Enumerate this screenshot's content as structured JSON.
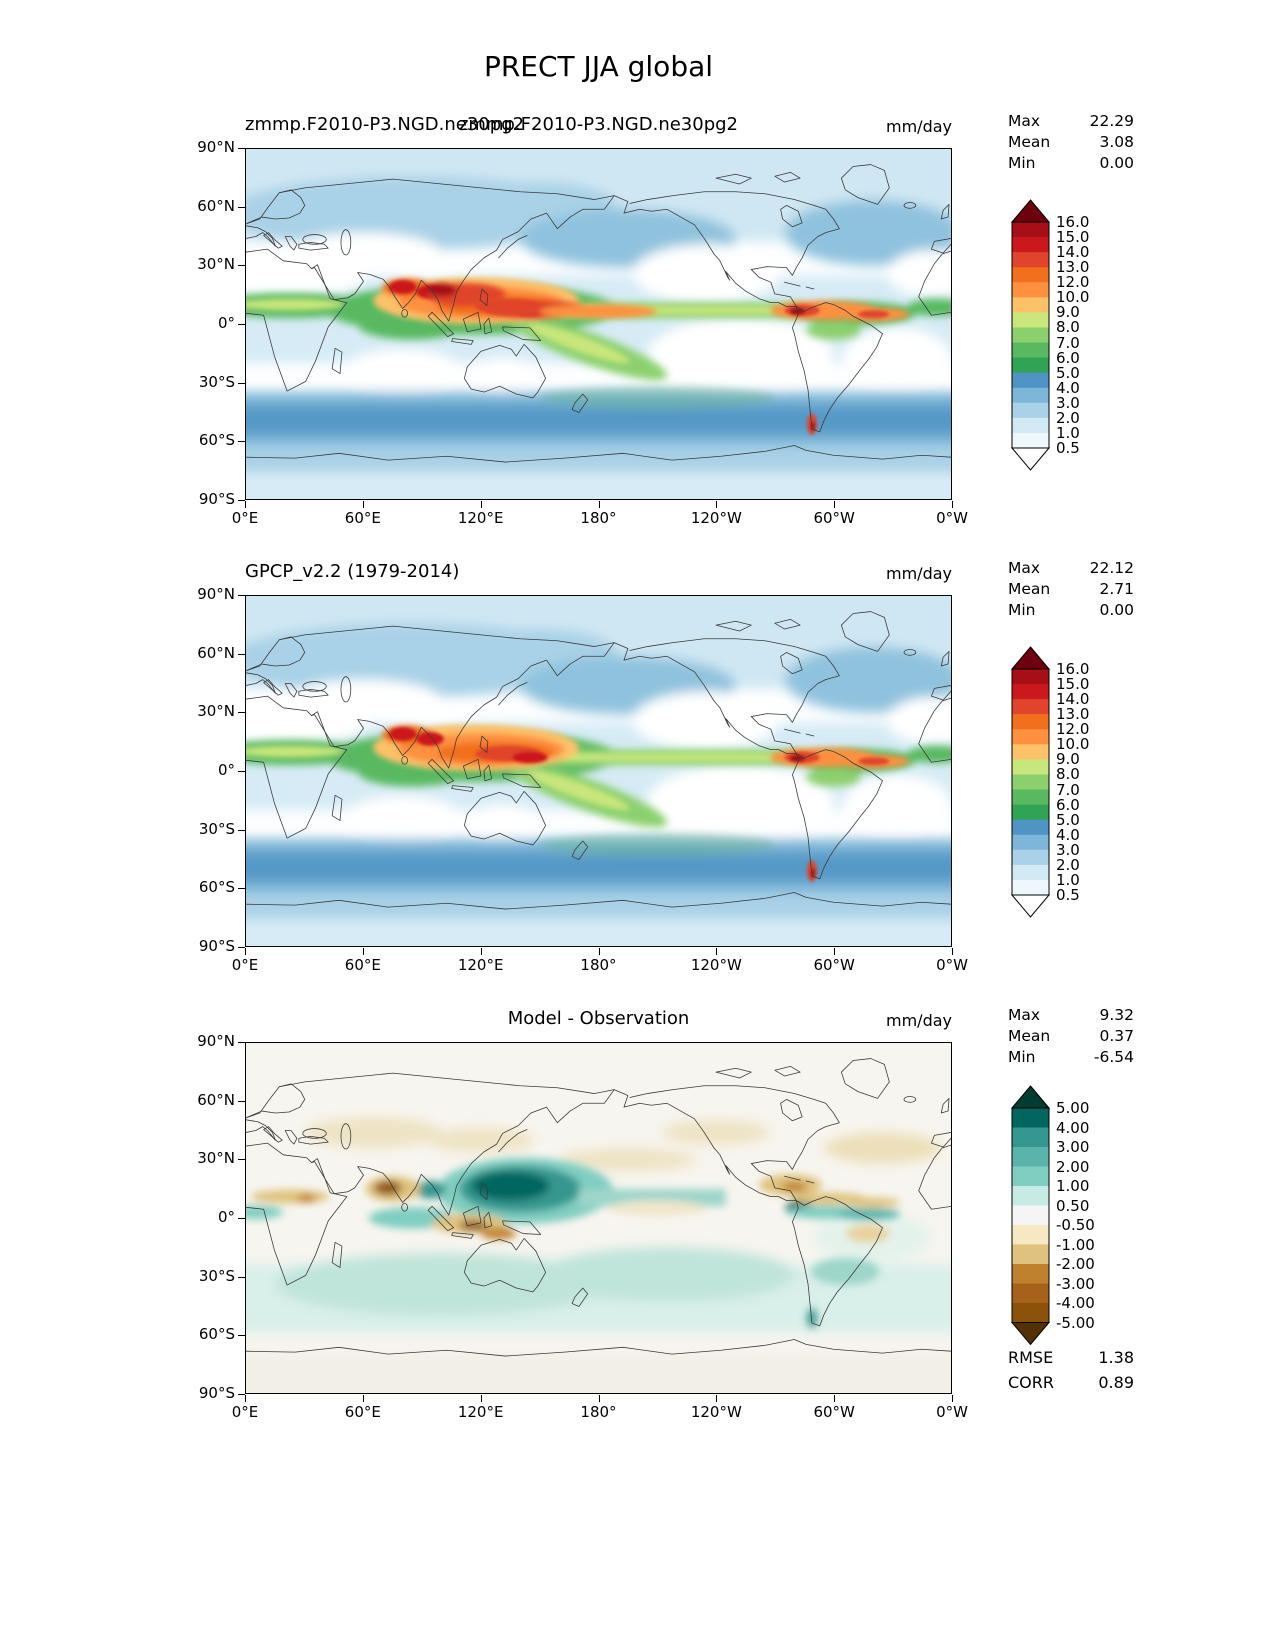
{
  "figure": {
    "title": "PRECT JJA global"
  },
  "chart_data": {
    "type": "heatmap",
    "title": "PRECT JJA global",
    "variable": "PRECT",
    "season": "JJA",
    "region": "global",
    "projection": "equirectangular lat-lon",
    "x_axis": {
      "tick_labels": [
        "0°E",
        "60°E",
        "120°E",
        "180°",
        "120°W",
        "60°W",
        "0°W"
      ],
      "range_lon_deg": [
        0,
        360
      ]
    },
    "y_axis": {
      "tick_labels": [
        "90°N",
        "60°N",
        "30°N",
        "0°",
        "30°S",
        "60°S",
        "90°S"
      ],
      "range_lat_deg": [
        90,
        -90
      ]
    },
    "panels": [
      {
        "name": "model",
        "title_left": "zmmp.F2010-P3.NGD.ne30pg2",
        "title_center": "zmmp.F2010-P3.NGD.ne30pg2",
        "units": "mm/day",
        "stats": [
          [
            "Max",
            "22.29"
          ],
          [
            "Mean",
            "3.08"
          ],
          [
            "Min",
            "0.00"
          ]
        ],
        "stats_numeric": {
          "max": 22.29,
          "mean": 3.08,
          "min": 0.0
        },
        "colorbar": {
          "levels": [
            0.5,
            1.0,
            2.0,
            3.0,
            4.0,
            5.0,
            6.0,
            7.0,
            8.0,
            9.0,
            10.0,
            12.0,
            13.0,
            14.0,
            15.0,
            16.0
          ],
          "tick_labels": [
            "16.0",
            "15.0",
            "14.0",
            "13.0",
            "12.0",
            "10.0",
            "9.0",
            "8.0",
            "7.0",
            "6.0",
            "5.0",
            "4.0",
            "3.0",
            "2.0",
            "1.0",
            "0.5"
          ],
          "band_colors_top_to_bottom": [
            "#a50f15",
            "#cb181d",
            "#e0442c",
            "#f2701d",
            "#fd9140",
            "#fdc169",
            "#c9e67d",
            "#8cd06e",
            "#59b961",
            "#31a354",
            "#4f94c4",
            "#7db6d8",
            "#a9d1e7",
            "#d3e9f4",
            "#eef7fb"
          ],
          "extend_over": "#6d010e",
          "extend_under": "#ffffff"
        }
      },
      {
        "name": "observation",
        "title_left": "GPCP_v2.2 (1979-2014)",
        "title_center": "",
        "units": "mm/day",
        "stats": [
          [
            "Max",
            "22.12"
          ],
          [
            "Mean",
            "2.71"
          ],
          [
            "Min",
            "0.00"
          ]
        ],
        "stats_numeric": {
          "max": 22.12,
          "mean": 2.71,
          "min": 0.0
        },
        "colorbar": {
          "levels": [
            0.5,
            1.0,
            2.0,
            3.0,
            4.0,
            5.0,
            6.0,
            7.0,
            8.0,
            9.0,
            10.0,
            12.0,
            13.0,
            14.0,
            15.0,
            16.0
          ],
          "tick_labels": [
            "16.0",
            "15.0",
            "14.0",
            "13.0",
            "12.0",
            "10.0",
            "9.0",
            "8.0",
            "7.0",
            "6.0",
            "5.0",
            "4.0",
            "3.0",
            "2.0",
            "1.0",
            "0.5"
          ],
          "band_colors_top_to_bottom": [
            "#a50f15",
            "#cb181d",
            "#e0442c",
            "#f2701d",
            "#fd9140",
            "#fdc169",
            "#c9e67d",
            "#8cd06e",
            "#59b961",
            "#31a354",
            "#4f94c4",
            "#7db6d8",
            "#a9d1e7",
            "#d3e9f4",
            "#eef7fb"
          ],
          "extend_over": "#6d010e",
          "extend_under": "#ffffff"
        }
      },
      {
        "name": "difference",
        "title_left": "",
        "title_center": "Model - Observation",
        "units": "mm/day",
        "stats": [
          [
            "Max",
            "9.32"
          ],
          [
            "Mean",
            "0.37"
          ],
          [
            "Min",
            "-6.54"
          ]
        ],
        "stats_numeric": {
          "max": 9.32,
          "mean": 0.37,
          "min": -6.54
        },
        "extra_stats": [
          [
            "RMSE",
            "1.38"
          ],
          [
            "CORR",
            "0.89"
          ]
        ],
        "extra_stats_numeric": {
          "rmse": 1.38,
          "corr": 0.89
        },
        "colorbar": {
          "levels": [
            -5.0,
            -4.0,
            -3.0,
            -2.0,
            -1.0,
            -0.5,
            0.5,
            1.0,
            2.0,
            3.0,
            4.0,
            5.0
          ],
          "tick_labels": [
            "5.00",
            "4.00",
            "3.00",
            "2.00",
            "1.00",
            "0.50",
            "-0.50",
            "-1.00",
            "-2.00",
            "-3.00",
            "-4.00",
            "-5.00"
          ],
          "band_colors_top_to_bottom": [
            "#01665e",
            "#35978f",
            "#5ab4ac",
            "#80cdc1",
            "#c7eae5",
            "#f5f5f5",
            "#f6e8c3",
            "#dfc27d",
            "#bf812d",
            "#a6611a",
            "#8c510a"
          ],
          "extend_over": "#003c30",
          "extend_under": "#543005"
        }
      }
    ]
  }
}
